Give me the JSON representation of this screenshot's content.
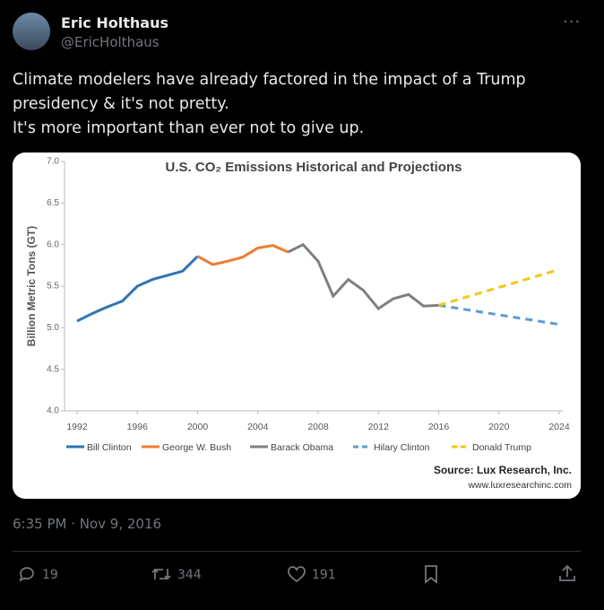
{
  "header": {
    "name": "Eric Holthaus",
    "handle": "@EricHolthaus"
  },
  "tweet": {
    "paragraphs": [
      "Climate modelers have already factored in the impact of a Trump presidency & it's not pretty.",
      "It's more important than ever not to give up."
    ],
    "timestamp": "6:35 PM · Nov 9, 2016",
    "replies": "19",
    "retweets": "344",
    "likes": "191"
  },
  "chart_data": {
    "type": "line",
    "title": "U.S. CO₂ Emissions Historical and Projections",
    "y_label": "Billion Metric Tons (GT)",
    "xlim": [
      1992,
      2024
    ],
    "xticks": [
      1992,
      1996,
      2000,
      2004,
      2008,
      2012,
      2016,
      2020,
      2024
    ],
    "ylim": [
      4.0,
      7.0
    ],
    "yticks": [
      {
        "value": 4.0,
        "label": "4.0"
      },
      {
        "value": 4.5,
        "label": "4.5"
      },
      {
        "value": 5.0,
        "label": "5.0"
      },
      {
        "value": 5.5,
        "label": "5.5"
      },
      {
        "value": 6.0,
        "label": "6.0"
      },
      {
        "value": 6.5,
        "label": "6.5"
      },
      {
        "value": 7.0,
        "label": "7.0"
      }
    ],
    "series": [
      {
        "name": "Bill Clinton",
        "color": "#2e75b6",
        "style": "solid",
        "x": [
          1992,
          1993,
          1994,
          1995,
          1996,
          1997,
          1998,
          1999,
          2000
        ],
        "values": [
          5.08,
          5.17,
          5.25,
          5.32,
          5.5,
          5.58,
          5.63,
          5.68,
          5.86
        ]
      },
      {
        "name": "George W. Bush",
        "color": "#ed7d31",
        "style": "solid",
        "x": [
          2000,
          2001,
          2002,
          2003,
          2004,
          2005,
          2006
        ],
        "values": [
          5.86,
          5.76,
          5.8,
          5.85,
          5.96,
          5.99,
          5.91
        ]
      },
      {
        "name": "Barack Obama",
        "color": "#7f7f7f",
        "style": "solid",
        "x": [
          2006,
          2007,
          2008,
          2009,
          2010,
          2011,
          2012,
          2013,
          2014,
          2015,
          2016
        ],
        "values": [
          5.91,
          6.0,
          5.8,
          5.38,
          5.58,
          5.45,
          5.23,
          5.35,
          5.4,
          5.26,
          5.27
        ]
      },
      {
        "name": "Hilary Clinton",
        "color": "#5b9bd5",
        "style": "dashed",
        "x": [
          2016,
          2024
        ],
        "values": [
          5.27,
          5.04
        ]
      },
      {
        "name": "Donald Trump",
        "color": "#f2c80f",
        "style": "dashed",
        "x": [
          2016,
          2024
        ],
        "values": [
          5.27,
          5.7
        ]
      }
    ],
    "source": "Source: Lux Research, Inc.",
    "url": "www.luxresearchinc.com"
  }
}
